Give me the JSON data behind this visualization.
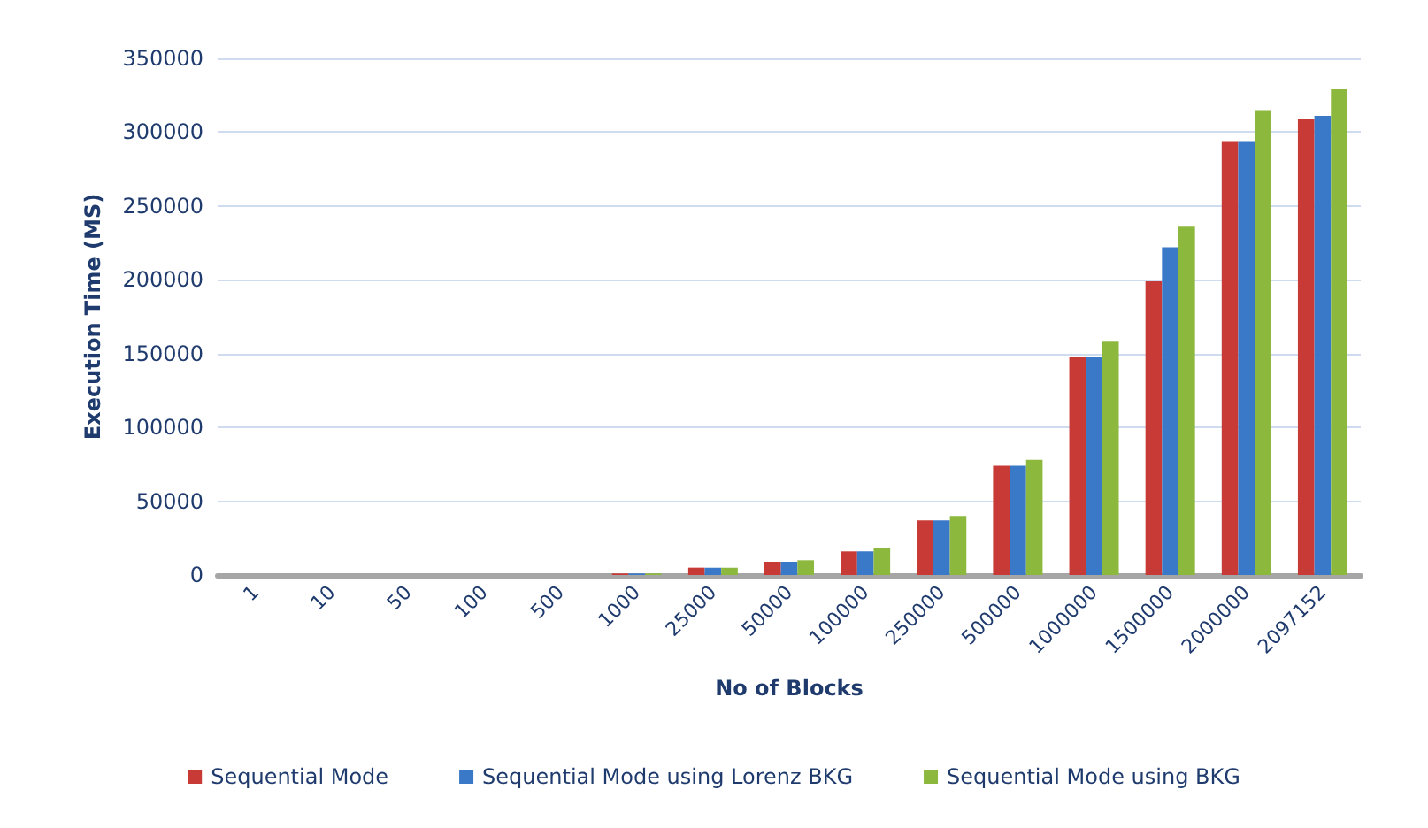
{
  "chart_data": {
    "type": "bar",
    "xlabel": "No of Blocks",
    "ylabel": "Execution Time (MS)",
    "categories": [
      "1",
      "10",
      "50",
      "100",
      "500",
      "1000",
      "25000",
      "50000",
      "100000",
      "250000",
      "500000",
      "1000000",
      "1500000",
      "2000000",
      "2097152"
    ],
    "series": [
      {
        "name": "Sequential Mode",
        "color": "#c83a35",
        "values": [
          0,
          0,
          0,
          0,
          0,
          1000,
          5000,
          9000,
          16000,
          37000,
          74000,
          148000,
          199000,
          294000,
          309000
        ]
      },
      {
        "name": "Sequential Mode using Lorenz BKG",
        "color": "#3a78c8",
        "values": [
          0,
          0,
          0,
          0,
          0,
          1000,
          5000,
          9000,
          16000,
          37000,
          74000,
          148000,
          222000,
          294000,
          311000
        ]
      },
      {
        "name": "Sequential Mode using BKG",
        "color": "#8cb83e",
        "values": [
          0,
          0,
          0,
          0,
          0,
          1000,
          5000,
          10000,
          18000,
          40000,
          78000,
          158000,
          236000,
          315000,
          329000
        ]
      }
    ],
    "ylim": [
      0,
      350000
    ],
    "yticks": [
      0,
      50000,
      100000,
      150000,
      200000,
      250000,
      300000,
      350000
    ],
    "grid": "y",
    "legend": "bottom"
  }
}
